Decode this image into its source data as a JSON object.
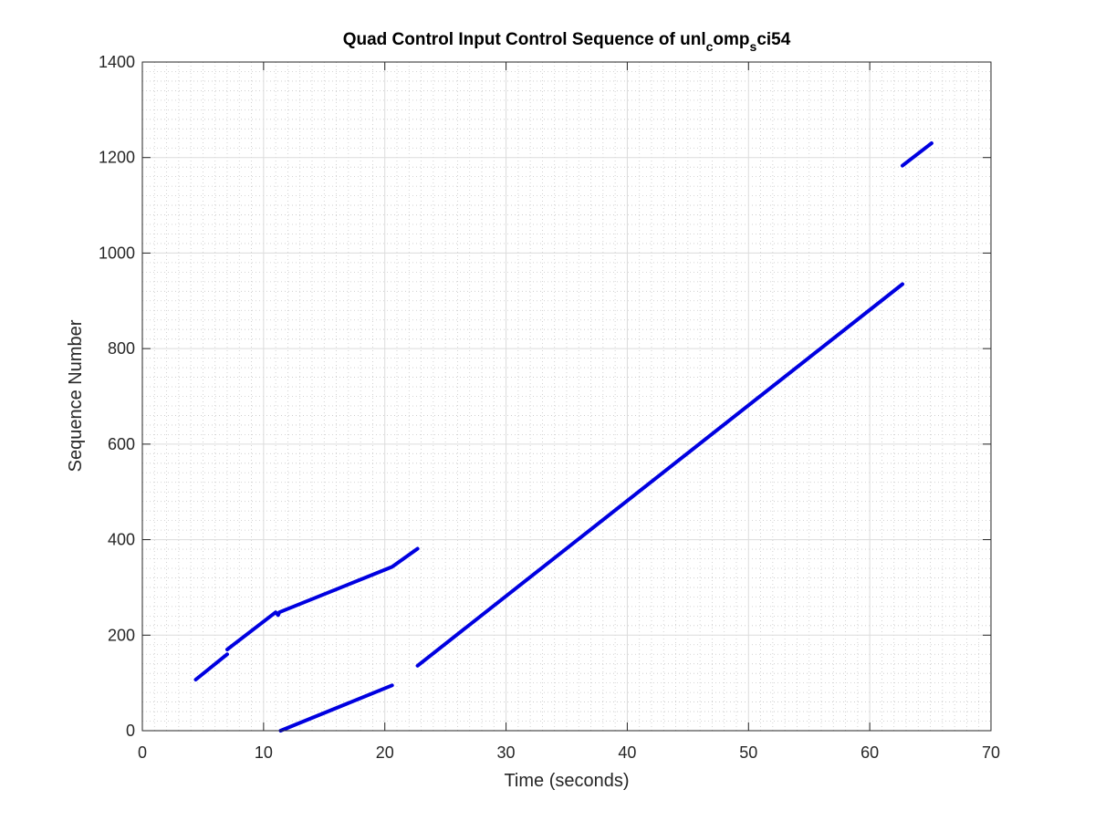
{
  "chart_data": {
    "type": "line",
    "title": {
      "base": "Quad Control Input Control Sequence of unl",
      "sub1": "c",
      "mid": "omp",
      "sub2": "s",
      "end": "ci54"
    },
    "xlabel": "Time (seconds)",
    "ylabel": "Sequence Number",
    "xlim": [
      0,
      70
    ],
    "ylim": [
      0,
      1400
    ],
    "xticks": [
      0,
      10,
      20,
      30,
      40,
      50,
      60,
      70
    ],
    "yticks": [
      0,
      200,
      400,
      600,
      800,
      1000,
      1200,
      1400
    ],
    "grid": true,
    "minor_grid": true,
    "line_color": "#0000e0",
    "series": [
      {
        "x": [
          4.4,
          7.0
        ],
        "y": [
          107,
          160
        ]
      },
      {
        "x": [
          7.0,
          11.0,
          11.2,
          11.3,
          20.6,
          22.7
        ],
        "y": [
          170,
          248,
          242,
          248,
          343,
          381
        ]
      },
      {
        "x": [
          11.4,
          20.6
        ],
        "y": [
          0,
          95
        ]
      },
      {
        "x": [
          22.7,
          62.7
        ],
        "y": [
          136,
          935
        ]
      },
      {
        "x": [
          62.7,
          65.1
        ],
        "y": [
          1183,
          1230
        ]
      }
    ]
  }
}
